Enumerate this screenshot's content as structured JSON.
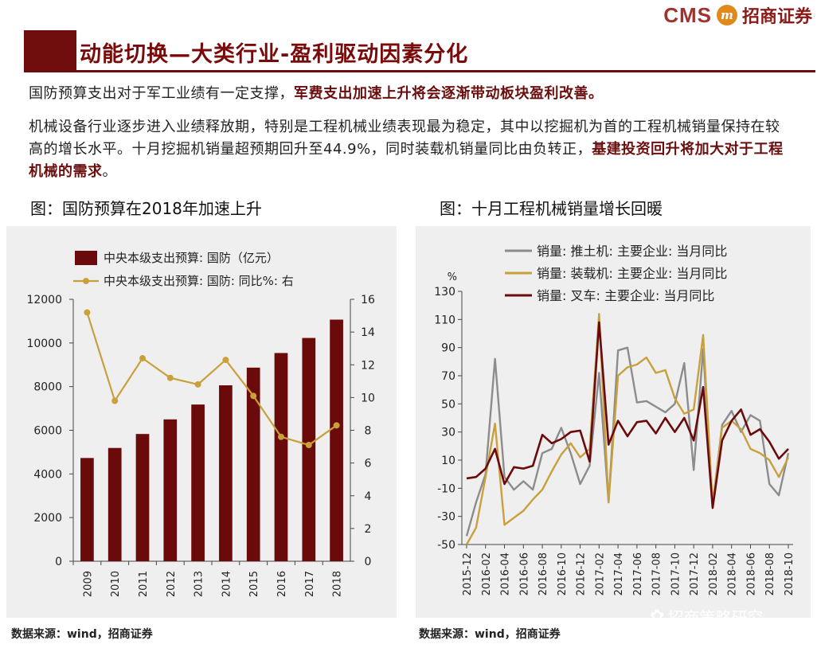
{
  "header": {
    "logo_text": "CMS",
    "logo_mark": "m",
    "logo_cn": "招商证券",
    "title": "动能切换—大类行业-盈利驱动因素分化"
  },
  "paragraphs": {
    "p1_plain": "国防预算支出对于军工业绩有一定支撑，",
    "p1_bold": "军费支出加速上升将会逐渐带动板块盈利改善。",
    "p2_plain": "机械设备行业逐步进入业绩释放期，特别是工程机械业绩表现最为稳定，其中以挖掘机为首的工程机械销量保持在较高的增长水平。十月挖掘机销量超预期回升至44.9%，同时装载机销量同比由负转正，",
    "p2_bold": "基建投资回升将加大对于工程机械的需求",
    "p2_end": "。"
  },
  "figures": {
    "fig1_title": "图：国防预算在2018年加速上升",
    "fig2_title": "图：十月工程机械销量增长回暖"
  },
  "sources": {
    "left": "数据来源：wind，招商证券",
    "right": "数据来源：wind，招商证券"
  },
  "watermark": "招商策略研究",
  "colors": {
    "brand": "#6f0c0c",
    "bar": "#6b0a0a",
    "line_gold": "#c8a03c",
    "bulldozer": "#8c8c8c",
    "loader": "#c8a03c",
    "forklift": "#6b0a0a"
  },
  "chart_data": [
    {
      "type": "bar",
      "title": "图：国防预算在2018年加速上升",
      "categories": [
        "2009",
        "2010",
        "2011",
        "2012",
        "2013",
        "2014",
        "2015",
        "2016",
        "2017",
        "2018"
      ],
      "series": [
        {
          "name": "中央本级支出预算: 国防（亿元）",
          "kind": "bar",
          "axis": "left",
          "values": [
            4730,
            5190,
            5830,
            6500,
            7180,
            8060,
            8870,
            9540,
            10230,
            11070
          ]
        },
        {
          "name": "中央本级支出预算: 国防: 同比%: 右",
          "kind": "line",
          "axis": "right",
          "values": [
            15.2,
            9.8,
            12.4,
            11.2,
            10.8,
            12.3,
            10.1,
            7.6,
            7.1,
            8.3
          ]
        }
      ],
      "ylim_left": [
        0,
        12000
      ],
      "yticks_left": [
        0,
        2000,
        4000,
        6000,
        8000,
        10000,
        12000
      ],
      "ylim_right": [
        0,
        16
      ],
      "yticks_right": [
        0,
        2,
        4,
        6,
        8,
        10,
        12,
        14,
        16
      ],
      "legend_position": "top-left"
    },
    {
      "type": "line",
      "title": "图：十月工程机械销量增长回暖",
      "ylabel": "%",
      "categories": [
        "2015-12",
        "2016-01",
        "2016-02",
        "2016-03",
        "2016-04",
        "2016-05",
        "2016-06",
        "2016-07",
        "2016-08",
        "2016-09",
        "2016-10",
        "2016-11",
        "2016-12",
        "2017-01",
        "2017-02",
        "2017-03",
        "2017-04",
        "2017-05",
        "2017-06",
        "2017-07",
        "2017-08",
        "2017-09",
        "2017-10",
        "2017-11",
        "2017-12",
        "2018-01",
        "2018-02",
        "2018-03",
        "2018-04",
        "2018-05",
        "2018-06",
        "2018-07",
        "2018-08",
        "2018-09",
        "2018-10"
      ],
      "xtick_labels": [
        "2015-12",
        "2016-02",
        "2016-04",
        "2016-06",
        "2016-08",
        "2016-10",
        "2016-12",
        "2017-02",
        "2017-04",
        "2017-06",
        "2017-08",
        "2017-10",
        "2017-12",
        "2018-02",
        "2018-04",
        "2018-06",
        "2018-08",
        "2018-10"
      ],
      "series": [
        {
          "name": "销量: 推土机: 主要企业: 当月同比",
          "values": [
            -44,
            -20,
            0,
            82,
            -2,
            -11,
            -5,
            -11,
            15,
            18,
            33,
            15,
            -7,
            6,
            72,
            -20,
            88,
            90,
            51,
            52,
            48,
            44,
            50,
            79,
            3,
            89,
            -22,
            35,
            45,
            30,
            42,
            38,
            -7,
            -15,
            15
          ]
        },
        {
          "name": "销量: 装载机: 主要企业: 当月同比",
          "values": [
            -50,
            -38,
            -2,
            36,
            -36,
            -31,
            -26,
            -18,
            -11,
            2,
            14,
            22,
            12,
            18,
            114,
            -20,
            70,
            76,
            78,
            83,
            72,
            74,
            54,
            43,
            46,
            99,
            -22,
            33,
            38,
            32,
            18,
            15,
            10,
            -2,
            12
          ]
        },
        {
          "name": "销量: 叉车: 主要企业: 当月同比",
          "values": [
            -3,
            -2,
            4,
            18,
            -7,
            5,
            4,
            6,
            28,
            22,
            25,
            30,
            31,
            9,
            108,
            21,
            38,
            27,
            37,
            38,
            29,
            40,
            30,
            40,
            24,
            62,
            -24,
            24,
            38,
            46,
            28,
            32,
            23,
            11,
            18
          ]
        }
      ],
      "ylim": [
        -50,
        130
      ],
      "yticks": [
        -50,
        -30,
        -10,
        10,
        30,
        50,
        70,
        90,
        110,
        130
      ],
      "legend_position": "top-left"
    }
  ]
}
